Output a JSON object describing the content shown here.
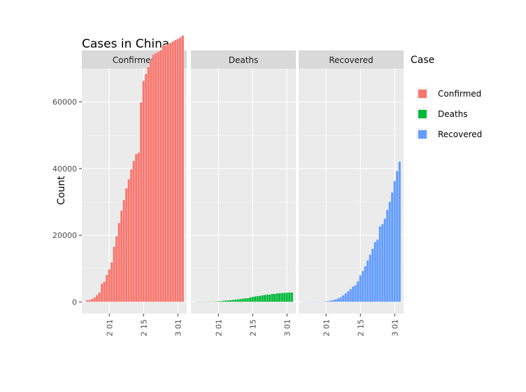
{
  "chart_data": {
    "type": "bar",
    "title": "Cases in China",
    "xlabel": "",
    "ylabel": "Count",
    "ylim": [
      -3500,
      70000
    ],
    "yticks": [
      0,
      20000,
      40000,
      60000
    ],
    "ytick_labels": [
      "0",
      "20000",
      "40000",
      "60000"
    ],
    "xticks": [
      {
        "day": 10,
        "label": "2 01"
      },
      {
        "day": 24,
        "label": "2 15"
      },
      {
        "day": 38,
        "label": "3 01"
      }
    ],
    "facets": [
      "Confirmed",
      "Deaths",
      "Recovered"
    ],
    "legend": {
      "title": "Case",
      "position": "right",
      "entries": [
        {
          "label": "Confirmed",
          "color": "#F8766D"
        },
        {
          "label": "Deaths",
          "color": "#00BA38"
        },
        {
          "label": "Recovered",
          "color": "#619CFF"
        }
      ]
    },
    "series": [
      {
        "name": "Confirmed",
        "color": "#F8766D",
        "values": [
          548,
          643,
          920,
          1406,
          2075,
          2877,
          5509,
          6087,
          8141,
          9802,
          11891,
          16630,
          19716,
          23707,
          27440,
          30587,
          34110,
          36814,
          39829,
          42354,
          44386,
          44759,
          59895,
          66358,
          68413,
          70513,
          72434,
          74211,
          74619,
          75077,
          75550,
          77001,
          77022,
          77241,
          77754,
          78166,
          78600,
          78928,
          79356,
          79932
        ]
      },
      {
        "name": "Deaths",
        "color": "#00BA38",
        "values": [
          17,
          18,
          26,
          42,
          56,
          82,
          131,
          133,
          171,
          213,
          259,
          361,
          425,
          490,
          562,
          632,
          717,
          804,
          904,
          1011,
          1111,
          1116,
          1368,
          1520,
          1662,
          1765,
          1863,
          2002,
          2114,
          2236,
          2236,
          2441,
          2443,
          2593,
          2663,
          2715,
          2744,
          2788,
          2835,
          2870
        ]
      },
      {
        "name": "Recovered",
        "color": "#619CFF",
        "values": [
          28,
          30,
          36,
          39,
          49,
          58,
          101,
          120,
          135,
          214,
          275,
          463,
          614,
          843,
          1115,
          1477,
          1999,
          2596,
          3219,
          3918,
          4636,
          5082,
          6217,
          7977,
          9298,
          10755,
          12462,
          14206,
          15962,
          18014,
          18704,
          22699,
          23357,
          24990,
          27650,
          30053,
          32898,
          36291,
          39279,
          42118
        ]
      }
    ]
  }
}
